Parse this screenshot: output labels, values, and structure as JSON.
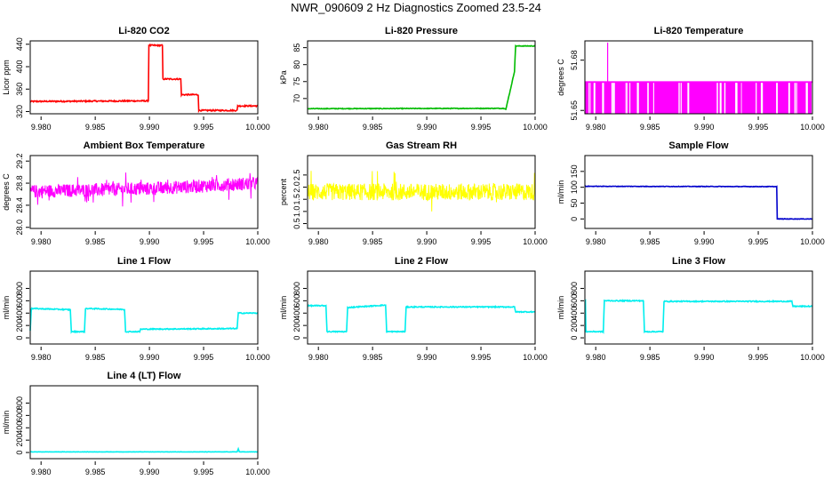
{
  "page_title": "NWR_090609  2 Hz Diagnostics Zoomed 23.5-24",
  "chart_data": [
    {
      "type": "line",
      "title": "Li-820 CO2",
      "xlabel": "",
      "ylabel": "Licor ppm",
      "xlim": [
        9.979,
        10.0
      ],
      "ylim": [
        316,
        446
      ],
      "xticks": [
        9.98,
        9.985,
        9.99,
        9.995,
        10.0
      ],
      "xtick_labels": [
        "9.980",
        "9.985",
        "9.990",
        "9.995",
        "10.000"
      ],
      "yticks": [
        320,
        360,
        400,
        440
      ],
      "ytick_labels": [
        "320",
        "360",
        "400",
        "440"
      ],
      "color": "#ff0000",
      "noise": 1.2,
      "series": [
        {
          "x": [
            9.979,
            9.9899,
            9.98995,
            9.9912,
            9.99125,
            9.9929,
            9.99295,
            9.9945,
            9.99455,
            9.9981,
            9.99815,
            10.0
          ],
          "y": [
            338,
            339,
            438,
            438,
            378,
            378,
            350,
            350,
            322,
            322,
            330,
            330
          ]
        }
      ]
    },
    {
      "type": "line",
      "title": "Li-820 Pressure",
      "xlabel": "",
      "ylabel": "kPa",
      "xlim": [
        9.979,
        10.0
      ],
      "ylim": [
        65.5,
        87
      ],
      "xticks": [
        9.98,
        9.985,
        9.99,
        9.995,
        10.0
      ],
      "xtick_labels": [
        "9.980",
        "9.985",
        "9.990",
        "9.995",
        "10.000"
      ],
      "yticks": [
        70,
        75,
        80,
        85
      ],
      "ytick_labels": [
        "70",
        "75",
        "80",
        "85"
      ],
      "color": "#00bb00",
      "noise": 0.1,
      "series": [
        {
          "x": [
            9.979,
            9.9972,
            9.9973,
            9.9981,
            9.9982,
            10.0
          ],
          "y": [
            67.0,
            67.1,
            66.8,
            78,
            85.5,
            85.5
          ]
        }
      ]
    },
    {
      "type": "spikes",
      "title": "Li-820 Temperature",
      "xlabel": "",
      "ylabel": "degrees C",
      "xlim": [
        9.979,
        10.0
      ],
      "ylim": [
        51.648,
        51.6915
      ],
      "xticks": [
        9.98,
        9.985,
        9.99,
        9.995,
        10.0
      ],
      "xtick_labels": [
        "9.980",
        "9.985",
        "9.990",
        "9.995",
        "10.000"
      ],
      "yticks": [
        51.65,
        51.68
      ],
      "ytick_labels": [
        "51.65",
        "51.68"
      ],
      "color": "#ff00ff",
      "series": [
        {
          "base": 51.667,
          "low": 51.648,
          "high": 51.667,
          "peak_x": 9.9811,
          "peak_y": 51.6905
        }
      ]
    },
    {
      "type": "noise",
      "title": "Ambient Box Temperature",
      "xlabel": "",
      "ylabel": "degrees C",
      "xlim": [
        9.979,
        10.0
      ],
      "ylim": [
        27.98,
        29.3
      ],
      "xticks": [
        9.98,
        9.985,
        9.99,
        9.995,
        10.0
      ],
      "xtick_labels": [
        "9.980",
        "9.985",
        "9.990",
        "9.995",
        "10.000"
      ],
      "yticks": [
        28.0,
        28.4,
        28.8,
        29.2
      ],
      "ytick_labels": [
        "28.0",
        "28.4",
        "28.8",
        "29.2"
      ],
      "color": "#ff00ff",
      "series": [
        {
          "x": [
            9.979,
            9.99,
            10.0
          ],
          "mean": [
            28.65,
            28.7,
            28.8
          ],
          "spread": 0.12
        }
      ]
    },
    {
      "type": "noise",
      "title": "Gas Stream RH",
      "xlabel": "",
      "ylabel": "percent",
      "xlim": [
        9.979,
        10.0
      ],
      "ylim": [
        0.3,
        3.3
      ],
      "xticks": [
        9.98,
        9.985,
        9.99,
        9.995,
        10.0
      ],
      "xtick_labels": [
        "9.980",
        "9.985",
        "9.990",
        "9.995",
        "10.000"
      ],
      "yticks": [
        0.5,
        1.0,
        1.5,
        2.0,
        2.5
      ],
      "ytick_labels": [
        "0.5",
        "1.0",
        "1.5",
        "2.0",
        "2.5"
      ],
      "color": "#ffff00",
      "series": [
        {
          "x": [
            9.979,
            10.0
          ],
          "mean": [
            1.8,
            1.8
          ],
          "spread": 0.35
        }
      ]
    },
    {
      "type": "line",
      "title": "Sample Flow",
      "xlabel": "",
      "ylabel": "ml/min",
      "xlim": [
        9.979,
        10.0
      ],
      "ylim": [
        -30,
        200
      ],
      "xticks": [
        9.98,
        9.985,
        9.99,
        9.995,
        10.0
      ],
      "xtick_labels": [
        "9.980",
        "9.985",
        "9.990",
        "9.995",
        "10.000"
      ],
      "yticks": [
        0,
        50,
        100,
        150
      ],
      "ytick_labels": [
        "0",
        "50",
        "100",
        "150"
      ],
      "color": "#0000cc",
      "noise": 0.8,
      "series": [
        {
          "x": [
            9.979,
            9.9967,
            9.99675,
            10.0
          ],
          "y": [
            103,
            102,
            0,
            0
          ]
        }
      ]
    },
    {
      "type": "line",
      "title": "Line 1 Flow",
      "xlabel": "",
      "ylabel": "ml/min",
      "xlim": [
        9.979,
        10.0
      ],
      "ylim": [
        -100,
        1080
      ],
      "xticks": [
        9.98,
        9.985,
        9.99,
        9.995,
        10.0
      ],
      "xtick_labels": [
        "9.980",
        "9.985",
        "9.990",
        "9.995",
        "10.000"
      ],
      "yticks": [
        0,
        200,
        400,
        600,
        800
      ],
      "ytick_labels": [
        "0",
        "200",
        "400",
        "600",
        "800"
      ],
      "color": "#00eeee",
      "noise": 8,
      "series": [
        {
          "x": [
            9.979,
            9.9791,
            9.9792,
            9.9827,
            9.9828,
            9.984,
            9.9841,
            9.9877,
            9.9878,
            9.9891,
            9.9892,
            9.9981,
            9.9982,
            10.0
          ],
          "y": [
            120,
            470,
            475,
            455,
            100,
            100,
            475,
            460,
            100,
            100,
            140,
            150,
            400,
            400
          ]
        }
      ]
    },
    {
      "type": "line",
      "title": "Line 2 Flow",
      "xlabel": "",
      "ylabel": "ml/min",
      "xlim": [
        9.979,
        10.0
      ],
      "ylim": [
        -100,
        1080
      ],
      "xticks": [
        9.98,
        9.985,
        9.99,
        9.995,
        10.0
      ],
      "xtick_labels": [
        "9.980",
        "9.985",
        "9.990",
        "9.995",
        "10.000"
      ],
      "yticks": [
        0,
        200,
        400,
        600,
        800
      ],
      "ytick_labels": [
        "0",
        "200",
        "400",
        "600",
        "800"
      ],
      "color": "#00eeee",
      "noise": 8,
      "series": [
        {
          "x": [
            9.979,
            9.9807,
            9.9808,
            9.9826,
            9.9827,
            9.9862,
            9.9863,
            9.988,
            9.9881,
            9.9981,
            9.9982,
            10.0
          ],
          "y": [
            520,
            520,
            100,
            100,
            490,
            530,
            100,
            100,
            500,
            500,
            420,
            420
          ]
        }
      ]
    },
    {
      "type": "line",
      "title": "Line 3 Flow",
      "xlabel": "",
      "ylabel": "ml/min",
      "xlim": [
        9.979,
        10.0
      ],
      "ylim": [
        -100,
        1080
      ],
      "xticks": [
        9.98,
        9.985,
        9.99,
        9.995,
        10.0
      ],
      "xtick_labels": [
        "9.980",
        "9.985",
        "9.990",
        "9.995",
        "10.000"
      ],
      "yticks": [
        0,
        200,
        400,
        600,
        800
      ],
      "ytick_labels": [
        "0",
        "200",
        "400",
        "600",
        "800"
      ],
      "color": "#00eeee",
      "noise": 8,
      "series": [
        {
          "x": [
            9.979,
            9.97905,
            9.9791,
            9.9807,
            9.9808,
            9.9844,
            9.9845,
            9.9862,
            9.9863,
            9.9981,
            9.9982,
            10.0
          ],
          "y": [
            590,
            590,
            100,
            100,
            600,
            600,
            100,
            100,
            590,
            590,
            510,
            510
          ]
        }
      ]
    },
    {
      "type": "line",
      "title": "Line 4 (LT) Flow",
      "xlabel": "",
      "ylabel": "ml/min",
      "xlim": [
        9.979,
        10.0
      ],
      "ylim": [
        -100,
        1080
      ],
      "xticks": [
        9.98,
        9.985,
        9.99,
        9.995,
        10.0
      ],
      "xtick_labels": [
        "9.980",
        "9.985",
        "9.990",
        "9.995",
        "10.000"
      ],
      "yticks": [
        0,
        200,
        400,
        600,
        800
      ],
      "ytick_labels": [
        "0",
        "200",
        "400",
        "600",
        "800"
      ],
      "color": "#00eeee",
      "noise": 2,
      "series": [
        {
          "x": [
            9.979,
            9.9981,
            9.9982,
            9.9983,
            10.0
          ],
          "y": [
            10,
            10,
            60,
            10,
            10
          ]
        }
      ]
    }
  ]
}
